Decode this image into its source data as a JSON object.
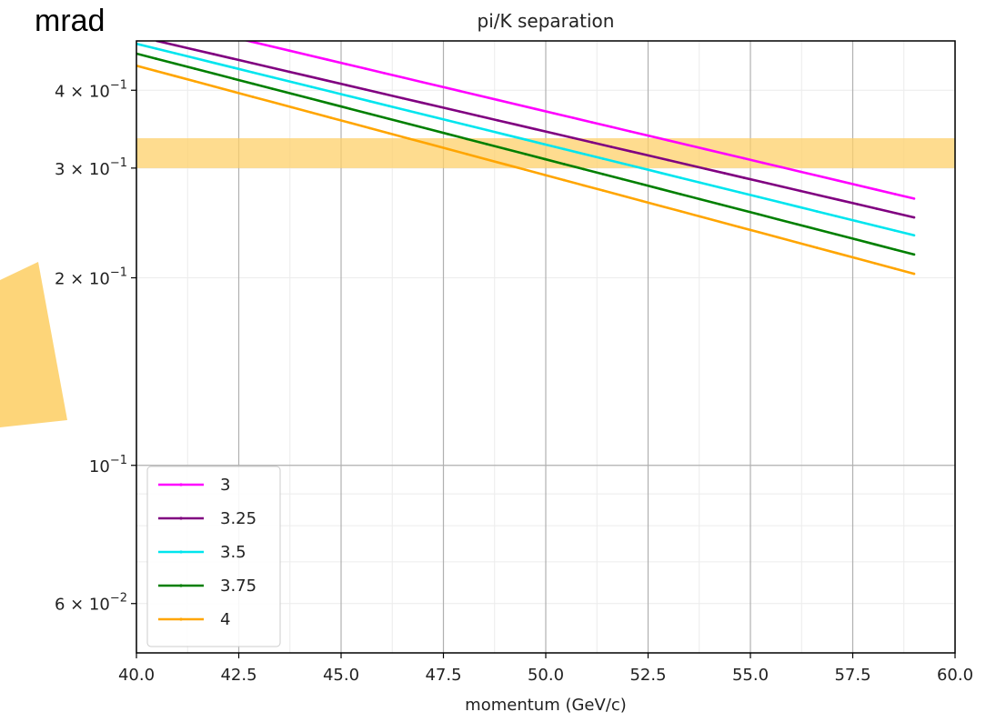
{
  "unit_label": "mrad",
  "chart_data": {
    "type": "line",
    "title": "pi/K separation",
    "xlabel": "momentum (GeV/c)",
    "ylabel": "",
    "xlim": [
      40.0,
      60.0
    ],
    "ylim": [
      0.05,
      0.48
    ],
    "yscale": "log",
    "grid": true,
    "legend_position": "lower-left",
    "x_ticks": [
      40.0,
      42.5,
      45.0,
      47.5,
      50.0,
      52.5,
      55.0,
      57.5,
      60.0
    ],
    "x_tick_labels": [
      "40.0",
      "42.5",
      "45.0",
      "47.5",
      "50.0",
      "52.5",
      "55.0",
      "57.5",
      "60.0"
    ],
    "y_ticks": [
      {
        "value": 0.4,
        "base": "4 × 10",
        "exp": "−1"
      },
      {
        "value": 0.3,
        "base": "3 × 10",
        "exp": "−1"
      },
      {
        "value": 0.2,
        "base": "2 × 10",
        "exp": "−1"
      },
      {
        "value": 0.1,
        "base": "10",
        "exp": "−1"
      },
      {
        "value": 0.06,
        "base": "6 × 10",
        "exp": "−2"
      }
    ],
    "highlight_band": {
      "y_min": 0.3,
      "y_max": 0.335,
      "color": "#fdd06a"
    },
    "series": [
      {
        "name": "3",
        "color": "#ff00ff",
        "x": [
          40.5,
          59.0
        ],
        "y": [
          0.52,
          0.268
        ]
      },
      {
        "name": "3.25",
        "color": "#800080",
        "x": [
          40.5,
          59.0
        ],
        "y": [
          0.48,
          0.25
        ]
      },
      {
        "name": "3.5",
        "color": "#00e5ee",
        "x": [
          40.0,
          59.0
        ],
        "y": [
          0.475,
          0.234
        ]
      },
      {
        "name": "3.75",
        "color": "#007f00",
        "x": [
          40.0,
          59.0
        ],
        "y": [
          0.458,
          0.218
        ]
      },
      {
        "name": "4",
        "color": "#ffa500",
        "x": [
          40.0,
          59.0
        ],
        "y": [
          0.438,
          0.203
        ]
      }
    ]
  }
}
